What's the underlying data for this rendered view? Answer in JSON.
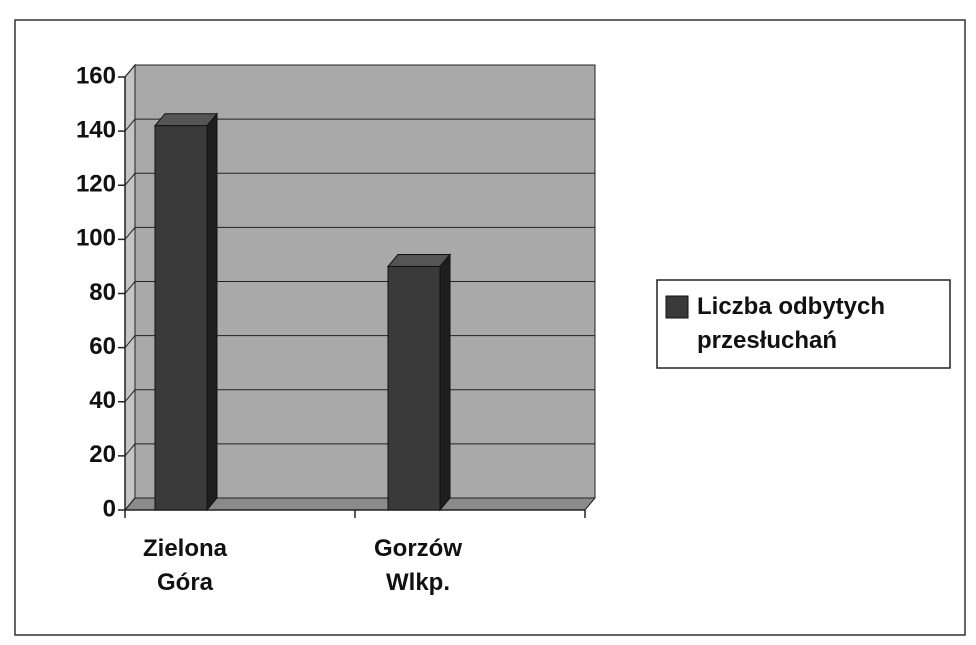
{
  "chart_data": {
    "type": "bar",
    "categories": [
      "Zielona Góra",
      "Gorzów Wlkp."
    ],
    "series": [
      {
        "name": "Liczba odbytych przesłuchań",
        "color": "#3a3a3a",
        "values": [
          142,
          90
        ]
      }
    ],
    "ylim": [
      0,
      160
    ],
    "yticks": [
      0,
      20,
      40,
      60,
      80,
      100,
      120,
      140,
      160
    ],
    "grid": true,
    "legend": "right"
  }
}
